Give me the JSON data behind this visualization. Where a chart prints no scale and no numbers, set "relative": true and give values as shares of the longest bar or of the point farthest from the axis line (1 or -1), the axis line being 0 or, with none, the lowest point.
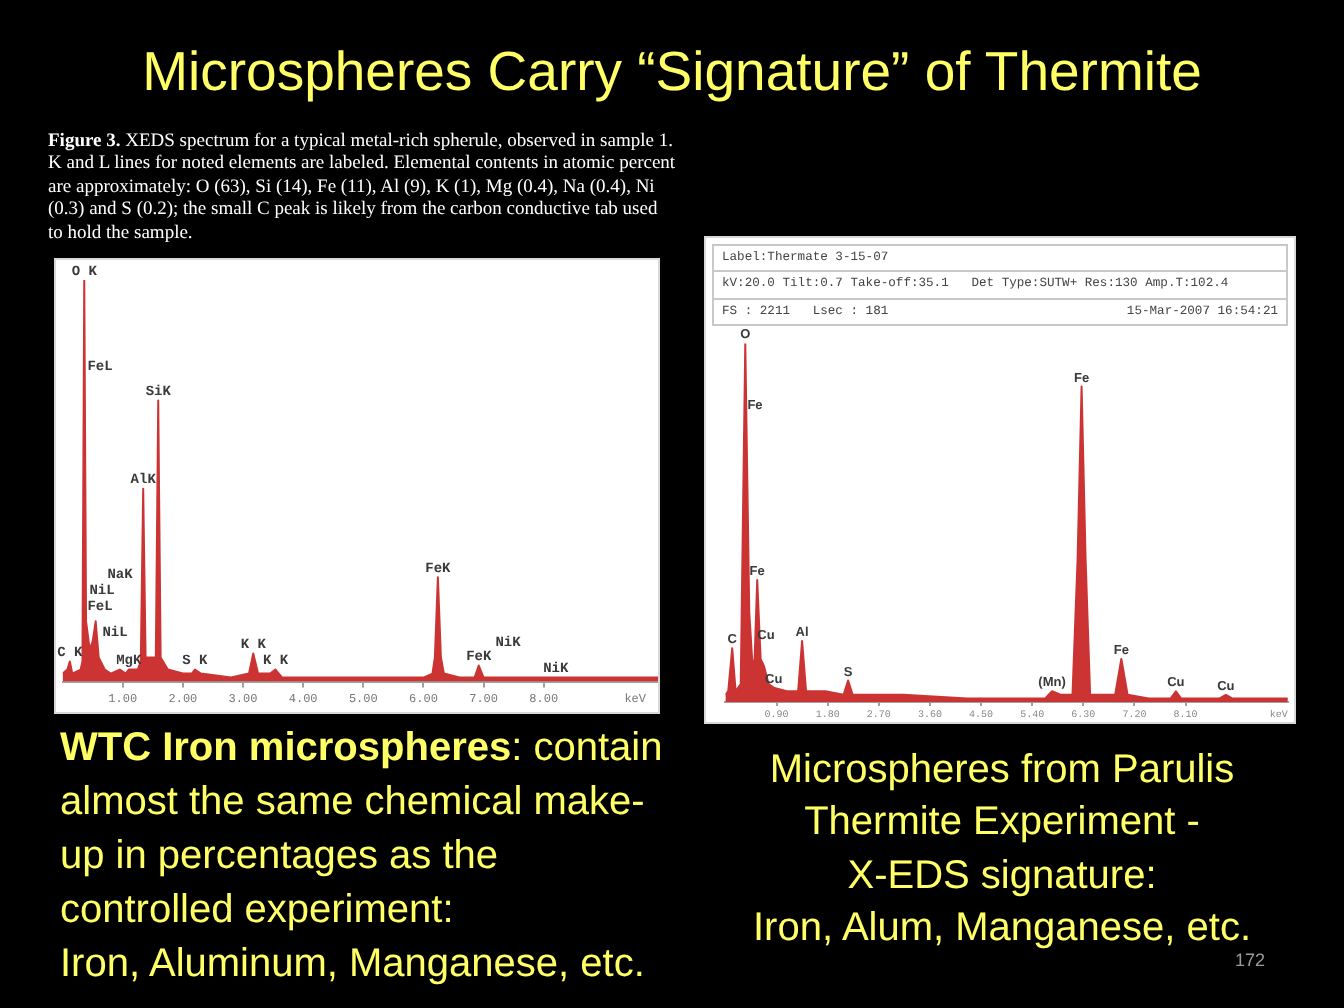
{
  "chart_data": [
    {
      "type": "other",
      "title": "Microspheres Carry “Signature” of Thermite"
    },
    {
      "type": "area",
      "relative": true,
      "x": [
        0,
        0.08,
        0.12,
        0.16,
        0.3,
        0.33,
        0.36,
        0.39,
        0.45,
        0.5,
        0.55,
        0.6,
        0.7,
        0.8,
        0.95,
        1.05,
        1.1,
        1.25,
        1.3,
        1.34,
        1.38,
        1.45,
        1.55,
        1.59,
        1.63,
        1.75,
        2.0,
        2.15,
        2.2,
        2.3,
        2.8,
        3.1,
        3.17,
        3.25,
        3.45,
        3.54,
        3.65,
        4.5,
        5.5,
        6.0,
        6.15,
        6.19,
        6.24,
        6.29,
        6.34,
        6.6,
        6.85,
        6.92,
        7.0,
        7.4,
        8.2,
        8.6,
        9.3,
        9.9
      ],
      "series": [
        {
          "color": "#cc3333",
          "values": [
            0.02,
            0.03,
            0.05,
            0.02,
            0.03,
            0.05,
            1.0,
            0.15,
            0.08,
            0.1,
            0.15,
            0.06,
            0.03,
            0.02,
            0.03,
            0.02,
            0.03,
            0.03,
            0.05,
            0.48,
            0.06,
            0.06,
            0.06,
            0.7,
            0.06,
            0.03,
            0.02,
            0.02,
            0.03,
            0.02,
            0.01,
            0.02,
            0.07,
            0.02,
            0.02,
            0.03,
            0.01,
            0.01,
            0.01,
            0.01,
            0.02,
            0.06,
            0.26,
            0.06,
            0.02,
            0.01,
            0.01,
            0.04,
            0.01,
            0.01,
            0.01,
            0.01,
            0.01,
            0.01
          ]
        }
      ],
      "xlim": [
        0,
        9.9
      ],
      "xticks": [
        {
          "value": 1,
          "label": "1.00"
        },
        {
          "value": 2,
          "label": "2.00"
        },
        {
          "value": 3,
          "label": "3.00"
        },
        {
          "value": 4,
          "label": "4.00"
        },
        {
          "value": 5,
          "label": "5.00"
        },
        {
          "value": 6,
          "label": "6.00"
        },
        {
          "value": 7,
          "label": "7.00"
        },
        {
          "value": 8,
          "label": "8.00"
        }
      ],
      "xlabel": "keV",
      "annotations": [
        "Figure 3.",
        "XEDS spectrum for a typical metal-rich spherule, observed in sample 1.",
        "K and L lines for noted elements are labeled.  Elemental contents in atomic percent are approximately:  O (63), Si (14), Fe (11), Al (9), K (1), Mg (0.4), Na (0.4), Ni (0.3) and S (0.2); the small C peak is likely from the carbon conductive tab used to hold the sample.",
        "WTC Iron microspheres",
        ": contain",
        "almost the same chemical make-up in percentages as the controlled experiment:\nIron, Aluminum, Manganese, etc.",
        "FeL",
        "NaK",
        "NiL",
        "FeL",
        "NiL",
        "NiK",
        {
          "text": "O K",
          "x": 0.36,
          "y": 1.0
        },
        {
          "text": "SiK",
          "x": 1.59,
          "y": 0.7
        },
        {
          "text": "AlK",
          "x": 1.34,
          "y": 0.48
        },
        {
          "text": "C K",
          "x": 0.12,
          "y": 0.05
        },
        {
          "text": "MgK",
          "x": 1.1,
          "y": 0.03
        },
        {
          "text": "S K",
          "x": 2.2,
          "y": 0.03
        },
        {
          "text": "K K",
          "x": 3.17,
          "y": 0.07
        },
        {
          "text": "K K",
          "x": 3.54,
          "y": 0.03
        },
        {
          "text": "FeK",
          "x": 6.24,
          "y": 0.26
        },
        {
          "text": "FeK",
          "x": 6.92,
          "y": 0.04
        },
        {
          "text": "NiK",
          "x": 8.2,
          "y": 0.01
        }
      ]
    },
    {
      "type": "area",
      "relative": true,
      "x": [
        0.0,
        0.05,
        0.12,
        0.18,
        0.27,
        0.35,
        0.42,
        0.47,
        0.51,
        0.56,
        0.62,
        0.68,
        0.76,
        0.85,
        1.08,
        1.28,
        1.35,
        1.42,
        1.76,
        2.08,
        2.16,
        2.24,
        3.13,
        4.26,
        5.4,
        5.63,
        5.75,
        5.91,
        6.11,
        6.2,
        6.27,
        6.34,
        6.42,
        6.86,
        6.97,
        7.08,
        7.45,
        7.84,
        7.93,
        8.02,
        8.7,
        8.81,
        8.92,
        9.49,
        9.9
      ],
      "series": [
        {
          "color": "#cc3333",
          "values": [
            0.02,
            0.03,
            0.15,
            0.03,
            0.05,
            1.0,
            0.25,
            0.12,
            0.1,
            0.34,
            0.12,
            0.1,
            0.05,
            0.04,
            0.03,
            0.03,
            0.17,
            0.03,
            0.03,
            0.02,
            0.06,
            0.02,
            0.02,
            0.01,
            0.01,
            0.01,
            0.03,
            0.02,
            0.02,
            0.4,
            0.88,
            0.4,
            0.02,
            0.02,
            0.12,
            0.02,
            0.01,
            0.01,
            0.03,
            0.01,
            0.01,
            0.02,
            0.01,
            0.01,
            0.01
          ]
        }
      ],
      "xlim": [
        0,
        9.9
      ],
      "xticks": [
        {
          "value": 0.9,
          "label": "0.90"
        },
        {
          "value": 1.8,
          "label": "1.80"
        },
        {
          "value": 2.7,
          "label": "2.70"
        },
        {
          "value": 3.6,
          "label": "3.60"
        },
        {
          "value": 4.5,
          "label": "4.50"
        },
        {
          "value": 5.4,
          "label": "5.40"
        },
        {
          "value": 6.3,
          "label": "6.30"
        },
        {
          "value": 7.2,
          "label": "7.20"
        },
        {
          "value": 8.1,
          "label": "8.10"
        }
      ],
      "xlabel": "keV",
      "annotations": [
        "Label:Thermate 3-15-07",
        "kV:20.0 Tilt:0.7 Take-off:35.1   Det Type:SUTW+ Res:130 Amp.T:102.4",
        "FS : 2211   Lsec : 181",
        "15-Mar-2007 16:54:21",
        "Microspheres from Parulis\nThermite Experiment -\nX-EDS signature:\nIron, Alum, Manganese, etc.",
        "172",
        "Fe",
        "Cu",
        {
          "text": "O",
          "x": 0.35,
          "y": 1.0
        },
        {
          "text": "Fe",
          "x": 0.56,
          "y": 0.34
        },
        {
          "text": "C",
          "x": 0.12,
          "y": 0.15
        },
        {
          "text": "Cu",
          "x": 0.85,
          "y": 0.04
        },
        {
          "text": "Al",
          "x": 1.35,
          "y": 0.17
        },
        {
          "text": "S",
          "x": 2.16,
          "y": 0.06
        },
        {
          "text": "(Mn)",
          "x": 5.75,
          "y": 0.03
        },
        {
          "text": "Fe",
          "x": 6.27,
          "y": 0.88
        },
        {
          "text": "Fe",
          "x": 6.97,
          "y": 0.12
        },
        {
          "text": "Cu",
          "x": 7.93,
          "y": 0.03
        },
        {
          "text": "Cu",
          "x": 8.81,
          "y": 0.02
        }
      ]
    }
  ]
}
